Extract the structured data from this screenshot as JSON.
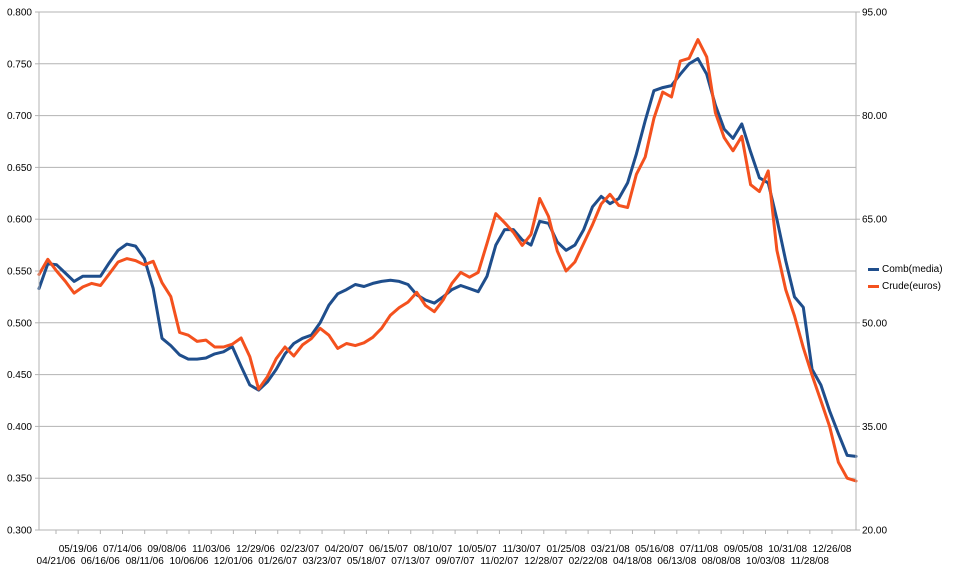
{
  "chart_data": {
    "type": "line",
    "title": "",
    "xlabel": "",
    "ylabel": "",
    "legend_position": "right",
    "grid": true,
    "x_tick_labels_upper": [
      "05/19/06",
      "07/14/06",
      "09/08/06",
      "11/03/06",
      "12/29/06",
      "02/23/07",
      "04/20/07",
      "06/15/07",
      "08/10/07",
      "10/05/07",
      "11/30/07",
      "01/25/08",
      "03/21/08",
      "05/16/08",
      "07/11/08",
      "09/05/08",
      "10/31/08",
      "12/26/08"
    ],
    "x_tick_labels_lower": [
      "04/21/06",
      "06/16/06",
      "08/11/06",
      "10/06/06",
      "12/01/06",
      "01/26/07",
      "03/23/07",
      "05/18/07",
      "07/13/07",
      "09/07/07",
      "11/02/07",
      "12/28/07",
      "02/22/08",
      "04/18/08",
      "06/13/08",
      "08/08/08",
      "10/03/08",
      "11/28/08"
    ],
    "y_left": {
      "ylim": [
        0.3,
        0.8
      ],
      "ticks": [
        "0.300",
        "0.350",
        "0.400",
        "0.450",
        "0.500",
        "0.550",
        "0.600",
        "0.650",
        "0.700",
        "0.750",
        "0.800"
      ]
    },
    "y_right": {
      "ylim": [
        20,
        95
      ],
      "ticks": [
        "20.00",
        "35.00",
        "50.00",
        "65.00",
        "80.00",
        "95.00"
      ]
    },
    "series": [
      {
        "name": "Comb(media)",
        "axis": "left",
        "color": "#1f4e8c",
        "values": [
          0.533,
          0.557,
          0.556,
          0.548,
          0.54,
          0.545,
          0.545,
          0.545,
          0.558,
          0.57,
          0.576,
          0.574,
          0.562,
          0.533,
          0.485,
          0.478,
          0.469,
          0.465,
          0.465,
          0.466,
          0.47,
          0.472,
          0.477,
          0.458,
          0.44,
          0.435,
          0.443,
          0.455,
          0.47,
          0.48,
          0.485,
          0.488,
          0.5,
          0.517,
          0.528,
          0.532,
          0.537,
          0.535,
          0.538,
          0.54,
          0.541,
          0.54,
          0.537,
          0.527,
          0.522,
          0.519,
          0.525,
          0.532,
          0.536,
          0.533,
          0.53,
          0.545,
          0.575,
          0.59,
          0.59,
          0.58,
          0.575,
          0.598,
          0.596,
          0.578,
          0.57,
          0.575,
          0.59,
          0.612,
          0.622,
          0.615,
          0.62,
          0.635,
          0.663,
          0.695,
          0.724,
          0.727,
          0.729,
          0.74,
          0.75,
          0.755,
          0.74,
          0.71,
          0.687,
          0.678,
          0.692,
          0.665,
          0.64,
          0.635,
          0.6,
          0.56,
          0.525,
          0.515,
          0.455,
          0.44,
          0.415,
          0.393,
          0.372,
          0.371
        ]
      },
      {
        "name": "Crude(euros)",
        "axis": "right",
        "color": "#f4511e",
        "values": [
          57.0,
          59.2,
          57.5,
          56.0,
          54.3,
          55.2,
          55.7,
          55.4,
          57.1,
          58.8,
          59.3,
          59.0,
          58.4,
          58.9,
          55.8,
          53.8,
          48.6,
          48.2,
          47.3,
          47.5,
          46.5,
          46.5,
          46.9,
          47.8,
          45.1,
          40.4,
          42.2,
          44.8,
          46.5,
          45.2,
          46.8,
          47.7,
          49.2,
          48.2,
          46.3,
          47.0,
          46.7,
          47.1,
          47.9,
          49.2,
          51.1,
          52.2,
          53.0,
          54.4,
          52.5,
          51.6,
          53.3,
          55.7,
          57.3,
          56.6,
          57.3,
          61.5,
          65.8,
          64.5,
          63.1,
          61.2,
          62.8,
          68.0,
          65.4,
          60.4,
          57.5,
          58.8,
          61.5,
          64.2,
          67.2,
          68.6,
          67.0,
          66.7,
          71.5,
          74.0,
          79.6,
          83.4,
          82.7,
          87.9,
          88.3,
          91.0,
          88.5,
          80.4,
          76.8,
          74.9,
          77.0,
          70.0,
          69.0,
          72.0,
          60.5,
          54.8,
          51.0,
          46.4,
          42.4,
          38.7,
          35.0,
          29.8,
          27.5,
          27.1
        ]
      }
    ]
  }
}
